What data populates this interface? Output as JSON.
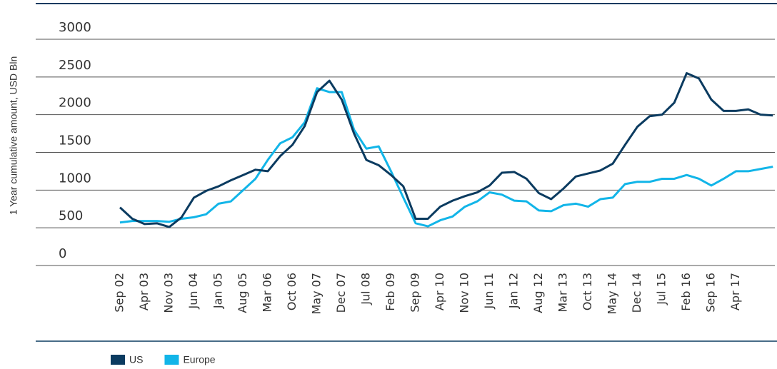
{
  "chart_data": {
    "type": "line",
    "y_label": "1 Year cumulative amount, USD Bln",
    "categories": [
      "Sep 02",
      null,
      "Apr 03",
      null,
      "Nov 03",
      null,
      "Jun 04",
      null,
      "Jan 05",
      null,
      "Aug 05",
      null,
      "Mar 06",
      null,
      "Oct 06",
      null,
      "May 07",
      null,
      "Dec 07",
      null,
      "Jul 08",
      null,
      "Feb 09",
      null,
      "Sep 09",
      null,
      "Apr 10",
      null,
      "Nov 10",
      null,
      "Jun 11",
      null,
      "Jan 12",
      null,
      "Aug 12",
      null,
      "Mar 13",
      null,
      "Oct 13",
      null,
      "May 14",
      null,
      "Dec 14",
      null,
      "Jul 15",
      null,
      "Feb 16",
      null,
      "Sep 16",
      null,
      "Apr 17",
      null,
      null,
      null
    ],
    "series": [
      {
        "name": "US",
        "color": "#0b3b60",
        "values": [
          770,
          620,
          550,
          560,
          510,
          640,
          900,
          990,
          1050,
          1130,
          1200,
          1270,
          1250,
          1450,
          1600,
          1850,
          2300,
          2450,
          2200,
          1750,
          1400,
          1330,
          1200,
          1050,
          620,
          620,
          780,
          860,
          920,
          970,
          1060,
          1230,
          1240,
          1150,
          960,
          880,
          1020,
          1180,
          1220,
          1260,
          1350,
          1600,
          1840,
          1980,
          2000,
          2160,
          2550,
          2480,
          2200,
          2050,
          2050,
          2070,
          2000,
          1990
        ]
      },
      {
        "name": "Europe",
        "color": "#12b5e8",
        "values": [
          570,
          590,
          590,
          590,
          580,
          620,
          640,
          680,
          820,
          850,
          1000,
          1150,
          1400,
          1620,
          1700,
          1900,
          2350,
          2300,
          2300,
          1800,
          1550,
          1580,
          1250,
          900,
          560,
          520,
          600,
          650,
          780,
          850,
          970,
          940,
          860,
          850,
          730,
          720,
          800,
          820,
          780,
          880,
          900,
          1080,
          1110,
          1110,
          1150,
          1150,
          1200,
          1150,
          1060,
          1150,
          1250,
          1250,
          1280,
          1310
        ]
      }
    ],
    "ylim": [
      0,
      3000
    ],
    "yticks": [
      0,
      500,
      1000,
      1500,
      2000,
      2500,
      3000
    ],
    "grid": true
  }
}
